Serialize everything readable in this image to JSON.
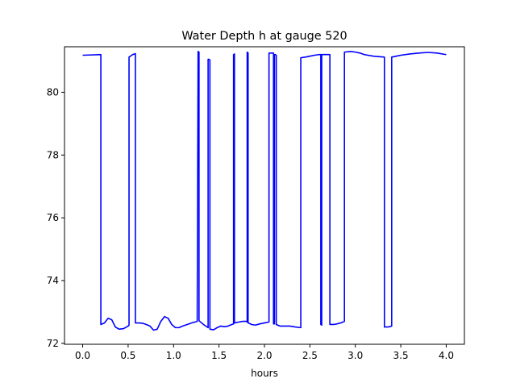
{
  "chart_data": {
    "type": "line",
    "title": "Water Depth h at gauge 520",
    "xlabel": "hours",
    "ylabel": "",
    "xlim": [
      -0.2,
      4.2
    ],
    "ylim": [
      71.97,
      81.45
    ],
    "xticks": [
      0.0,
      0.5,
      1.0,
      1.5,
      2.0,
      2.5,
      3.0,
      3.5,
      4.0
    ],
    "xtick_labels": [
      "0.0",
      "0.5",
      "1.0",
      "1.5",
      "2.0",
      "2.5",
      "3.0",
      "3.5",
      "4.0"
    ],
    "yticks": [
      72,
      74,
      76,
      78,
      80
    ],
    "ytick_labels": [
      "72",
      "74",
      "76",
      "78",
      "80"
    ],
    "grid": false,
    "legend": "none",
    "series": [
      {
        "color": "#0000ff",
        "x": [
          0.0,
          0.1,
          0.2,
          0.2,
          0.24,
          0.28,
          0.32,
          0.36,
          0.4,
          0.45,
          0.5,
          0.51,
          0.51,
          0.55,
          0.58,
          0.58,
          0.62,
          0.66,
          0.7,
          0.74,
          0.78,
          0.82,
          0.86,
          0.9,
          0.94,
          0.98,
          1.02,
          1.06,
          1.1,
          1.15,
          1.2,
          1.26,
          1.27,
          1.28,
          1.28,
          1.33,
          1.38,
          1.38,
          1.39,
          1.4,
          1.4,
          1.44,
          1.48,
          1.52,
          1.56,
          1.6,
          1.64,
          1.66,
          1.66,
          1.67,
          1.67,
          1.72,
          1.76,
          1.8,
          1.81,
          1.81,
          1.82,
          1.82,
          1.86,
          1.9,
          1.95,
          2.0,
          2.05,
          2.05,
          2.1,
          2.1,
          2.11,
          2.11,
          2.12,
          2.13,
          2.13,
          2.17,
          2.22,
          2.28,
          2.34,
          2.4,
          2.4,
          2.45,
          2.5,
          2.55,
          2.6,
          2.62,
          2.62,
          2.63,
          2.63,
          2.68,
          2.72,
          2.72,
          2.76,
          2.8,
          2.84,
          2.88,
          2.88,
          2.95,
          3.0,
          3.05,
          3.1,
          3.2,
          3.32,
          3.32,
          3.36,
          3.4,
          3.4,
          3.45,
          3.5,
          3.6,
          3.7,
          3.8,
          3.9,
          4.0
        ],
        "y": [
          81.18,
          81.19,
          81.2,
          72.6,
          72.65,
          72.8,
          72.75,
          72.52,
          72.45,
          72.47,
          72.55,
          72.58,
          81.12,
          81.2,
          81.23,
          72.65,
          72.65,
          72.64,
          72.6,
          72.55,
          72.42,
          72.45,
          72.7,
          72.85,
          72.8,
          72.6,
          72.5,
          72.5,
          72.55,
          72.6,
          72.65,
          72.7,
          81.3,
          81.28,
          72.72,
          72.6,
          72.5,
          81.05,
          81.05,
          81.03,
          72.45,
          72.43,
          72.5,
          72.55,
          72.53,
          72.55,
          72.6,
          72.62,
          81.2,
          81.22,
          72.65,
          72.68,
          72.7,
          72.7,
          72.68,
          81.28,
          81.25,
          72.65,
          72.6,
          72.58,
          72.62,
          72.65,
          72.68,
          81.25,
          81.25,
          72.62,
          72.62,
          81.2,
          81.2,
          81.18,
          72.6,
          72.55,
          72.55,
          72.55,
          72.52,
          72.5,
          81.1,
          81.12,
          81.15,
          81.18,
          81.2,
          81.2,
          72.6,
          72.58,
          81.2,
          81.2,
          81.2,
          72.6,
          72.6,
          72.62,
          72.65,
          72.7,
          81.28,
          81.3,
          81.28,
          81.25,
          81.2,
          81.15,
          81.12,
          72.52,
          72.52,
          72.55,
          81.12,
          81.15,
          81.18,
          81.22,
          81.25,
          81.27,
          81.25,
          81.2
        ]
      }
    ]
  }
}
